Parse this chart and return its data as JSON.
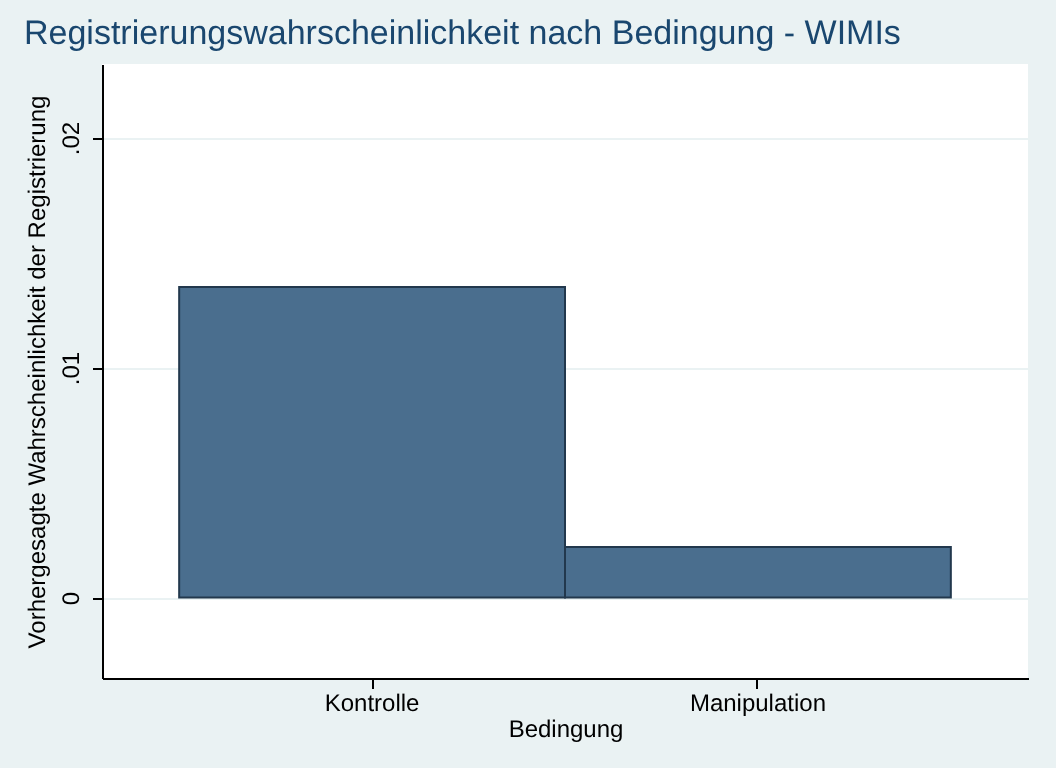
{
  "chart_data": {
    "type": "bar",
    "title": "Registrierungswahrscheinlichkeit nach Bedingung - WIMIs",
    "xlabel": "Bedingung",
    "ylabel": "Vorhergesagte Wahrscheinlichkeit der Registrierung",
    "categories": [
      "Kontrolle",
      "Manipulation"
    ],
    "values": [
      0.0135,
      0.0022
    ],
    "color": "#4a6e8e",
    "ylim": [
      -0.0035,
      0.0232
    ],
    "yticks": [
      0,
      {
        "value": 0.01,
        "label": ".01"
      },
      {
        "value": 0.02,
        "label": ".02"
      }
    ],
    "grid": "y"
  }
}
